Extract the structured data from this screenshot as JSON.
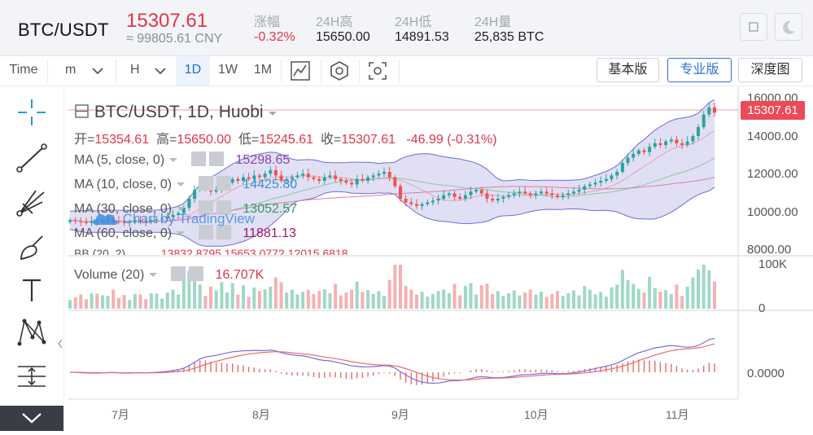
{
  "header": {
    "pair": "BTC/USDT",
    "price": "15307.61",
    "cny": "≈ 99805.61 CNY",
    "stats": [
      {
        "label": "涨幅",
        "value": "-0.32%",
        "red": true
      },
      {
        "label": "24H高",
        "value": "15650.00"
      },
      {
        "label": "24H低",
        "value": "14891.53"
      },
      {
        "label": "24H量",
        "value": "25,835 BTC"
      }
    ]
  },
  "toolbar": {
    "time": "Time",
    "minute": "m",
    "hour": "H",
    "intervals": [
      "1D",
      "1W",
      "1M"
    ],
    "active_interval": "1D",
    "views": [
      "基本版",
      "专业版",
      "深度图"
    ],
    "active_view": "专业版"
  },
  "legend": {
    "title": "BTC/USDT, 1D, Huobi",
    "ohlc": {
      "o_label": "开=",
      "o": "15354.61",
      "h_label": "高=",
      "h": "15650.00",
      "l_label": "低=",
      "l": "15245.61",
      "c_label": "收=",
      "c": "15307.61",
      "change": "-46.99 (-0.31%)"
    },
    "ma5": {
      "label": "MA (5, close, 0)",
      "value": "15298.65",
      "color": "#8e44ad"
    },
    "ma10": {
      "label": "MA (10, close, 0)",
      "value": "14425.80",
      "color": "#3a8fd8"
    },
    "ma30": {
      "label": "MA (30, close, 0)",
      "value": "13052.57",
      "color": "#2e9e5b"
    },
    "ma60": {
      "label": "MA (60, close, 0)",
      "value": "11881.13",
      "color": "#a0166b"
    },
    "bb": {
      "label": "BB (20, 2)",
      "values": "13832.8795  15653.0772  12015.6818"
    },
    "volume": {
      "label": "Volume (20)",
      "value": "16.707K"
    }
  },
  "watermark": "Chart by TradingView",
  "price_tag": "15307.61",
  "price_axis": [
    "16000.00",
    "14000.00",
    "12000.00",
    "10000.00",
    "8000.00"
  ],
  "volume_axis": [
    "100K",
    "0"
  ],
  "macd_axis": [
    "0.0000"
  ],
  "time_axis": [
    "7月",
    "8月",
    "9月",
    "10月",
    "11月"
  ],
  "colors": {
    "up": "#26a69a",
    "down": "#ef5350",
    "accent": "#2c72d6",
    "price_red": "#e0364a"
  },
  "chart_data": {
    "type": "candlestick",
    "interval": "1D",
    "symbol": "BTC/USDT",
    "exchange": "Huobi",
    "ylim": [
      7500,
      16500
    ],
    "x_months": [
      "7月",
      "8月",
      "9月",
      "10月",
      "11月"
    ],
    "close_series_approx": [
      9300,
      9250,
      9200,
      9150,
      9250,
      9200,
      9300,
      9350,
      9250,
      9200,
      9150,
      9200,
      9300,
      9250,
      9200,
      9300,
      9350,
      9400,
      9500,
      9600,
      9700,
      10000,
      10500,
      11000,
      11200,
      11100,
      10900,
      11000,
      11300,
      11400,
      11600,
      11500,
      11700,
      11600,
      11800,
      11700,
      11900,
      12100,
      11800,
      11500,
      11600,
      11700,
      11800,
      11900,
      11700,
      11600,
      11500,
      11700,
      11800,
      11600,
      11500,
      11400,
      11300,
      11600,
      11500,
      11700,
      11800,
      11900,
      12000,
      11700,
      11200,
      10500,
      10300,
      10200,
      10100,
      10200,
      10300,
      10400,
      10500,
      10700,
      10800,
      10600,
      10500,
      10700,
      10900,
      11000,
      10800,
      10500,
      10400,
      10500,
      10600,
      10700,
      10800,
      10900,
      10800,
      10700,
      10800,
      10900,
      10800,
      10700,
      10600,
      10700,
      10800,
      10900,
      11000,
      11200,
      11300,
      11400,
      11500,
      11600,
      11800,
      12000,
      12500,
      12800,
      13000,
      13200,
      13100,
      13400,
      13600,
      13500,
      13700,
      13800,
      13600,
      13500,
      13700,
      14000,
      14500,
      15200,
      15600,
      15300
    ],
    "volume_axis_max": 100000,
    "latest_volume": 16707
  }
}
